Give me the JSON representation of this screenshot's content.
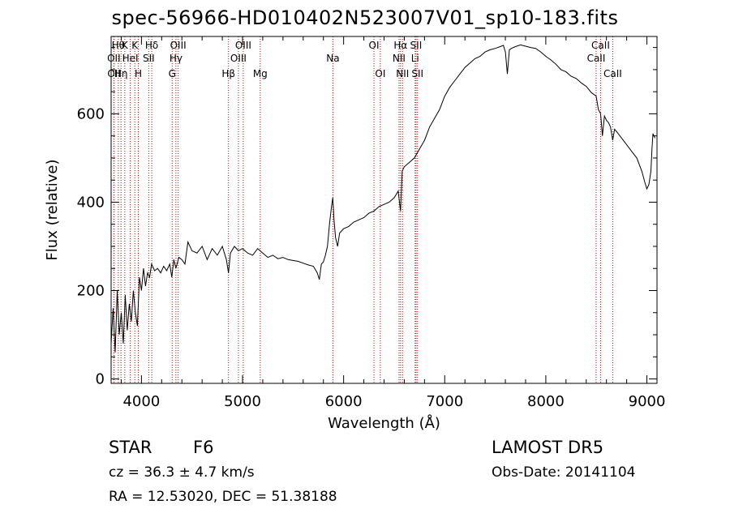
{
  "title": "spec-56966-HD010402N523007V01_sp10-183.fits",
  "info": {
    "star_label": "STAR",
    "star_type": "F6",
    "survey": "LAMOST  DR5",
    "redshift": "cz = 36.3 ± 4.7 km/s",
    "obs_date": "Obs-Date: 20141104",
    "coords": "RA =  12.53020, DEC =  51.38188"
  },
  "chart_data": {
    "type": "line",
    "title": "spec-56966-HD010402N523007V01_sp10-183.fits",
    "xlabel": "Wavelength (Å)",
    "ylabel": "Flux (relative)",
    "xlim": [
      3700,
      9100
    ],
    "ylim": [
      -10,
      775
    ],
    "xticks": [
      4000,
      5000,
      6000,
      7000,
      8000,
      9000
    ],
    "yticks": [
      0,
      200,
      400,
      600
    ],
    "grid": false,
    "line_color": "#000000",
    "marker_color": "#cc0000",
    "series": [
      {
        "x": [
          3700,
          3720,
          3740,
          3760,
          3780,
          3800,
          3820,
          3840,
          3860,
          3880,
          3900,
          3920,
          3940,
          3960,
          3980,
          4000,
          4020,
          4040,
          4060,
          4080,
          4100,
          4130,
          4160,
          4190,
          4220,
          4250,
          4280,
          4300,
          4320,
          4340,
          4370,
          4400,
          4430,
          4460,
          4500,
          4550,
          4600,
          4650,
          4700,
          4750,
          4800,
          4840,
          4861,
          4880,
          4920,
          4960,
          5000,
          5050,
          5100,
          5150,
          5200,
          5250,
          5300,
          5350,
          5400,
          5450,
          5500,
          5550,
          5600,
          5650,
          5700,
          5740,
          5760,
          5780,
          5800,
          5820,
          5840,
          5860,
          5880,
          5893,
          5905,
          5920,
          5940,
          5960,
          5980,
          6000,
          6050,
          6100,
          6150,
          6200,
          6250,
          6300,
          6350,
          6400,
          6450,
          6500,
          6540,
          6563,
          6580,
          6600,
          6650,
          6700,
          6750,
          6800,
          6850,
          6900,
          6950,
          7000,
          7050,
          7100,
          7150,
          7200,
          7250,
          7300,
          7350,
          7400,
          7450,
          7500,
          7550,
          7580,
          7600,
          7620,
          7640,
          7660,
          7700,
          7750,
          7800,
          7850,
          7900,
          7950,
          8000,
          8050,
          8100,
          8150,
          8200,
          8250,
          8300,
          8350,
          8400,
          8450,
          8498,
          8520,
          8542,
          8560,
          8580,
          8600,
          8620,
          8640,
          8662,
          8680,
          8700,
          8750,
          8800,
          8850,
          8900,
          8950,
          8980,
          9000,
          9020,
          9040,
          9050,
          9060,
          9070,
          9080
        ],
        "y": [
          80,
          160,
          60,
          200,
          100,
          150,
          80,
          190,
          110,
          170,
          130,
          200,
          150,
          120,
          230,
          200,
          250,
          210,
          240,
          230,
          260,
          245,
          250,
          240,
          255,
          245,
          260,
          230,
          270,
          250,
          275,
          270,
          260,
          310,
          290,
          285,
          300,
          270,
          295,
          280,
          300,
          270,
          240,
          285,
          300,
          290,
          295,
          285,
          280,
          295,
          285,
          275,
          280,
          272,
          275,
          270,
          268,
          266,
          262,
          258,
          255,
          240,
          225,
          260,
          265,
          280,
          300,
          350,
          390,
          410,
          360,
          320,
          300,
          330,
          335,
          340,
          345,
          355,
          360,
          365,
          375,
          380,
          390,
          395,
          400,
          410,
          425,
          380,
          470,
          480,
          490,
          500,
          520,
          540,
          570,
          590,
          610,
          640,
          660,
          675,
          690,
          705,
          715,
          725,
          730,
          740,
          745,
          748,
          752,
          755,
          740,
          690,
          745,
          748,
          752,
          756,
          753,
          750,
          748,
          740,
          730,
          722,
          712,
          700,
          695,
          685,
          680,
          670,
          662,
          648,
          640,
          610,
          600,
          550,
          595,
          585,
          580,
          570,
          540,
          565,
          560,
          545,
          530,
          515,
          500,
          470,
          445,
          430,
          440,
          470,
          520,
          555,
          550,
          545
        ]
      }
    ],
    "lines": [
      {
        "x": 3727,
        "label": "OII",
        "row": 1
      },
      {
        "x": 3729,
        "label": "OII",
        "row": 2
      },
      {
        "x": 3771,
        "label": "Hθ",
        "row": 0
      },
      {
        "x": 3798,
        "label": "Hη",
        "row": 2
      },
      {
        "x": 3835,
        "label": "K",
        "row": 0
      },
      {
        "x": 3889,
        "label": "HeI",
        "row": 1
      },
      {
        "x": 3934,
        "label": "K",
        "row": 0
      },
      {
        "x": 3969,
        "label": "H",
        "row": 2
      },
      {
        "x": 4072,
        "label": "SII",
        "row": 1
      },
      {
        "x": 4102,
        "label": "Hδ",
        "row": 0
      },
      {
        "x": 4304,
        "label": "G",
        "row": 2
      },
      {
        "x": 4341,
        "label": "Hγ",
        "row": 1
      },
      {
        "x": 4363,
        "label": "OIII",
        "row": 0
      },
      {
        "x": 4861,
        "label": "Hβ",
        "row": 2
      },
      {
        "x": 4959,
        "label": "OIII",
        "row": 1
      },
      {
        "x": 5007,
        "label": "OIII",
        "row": 0
      },
      {
        "x": 5175,
        "label": "Mg",
        "row": 2
      },
      {
        "x": 5894,
        "label": "Na",
        "row": 1
      },
      {
        "x": 6300,
        "label": "OI",
        "row": 0
      },
      {
        "x": 6363,
        "label": "OI",
        "row": 2
      },
      {
        "x": 6548,
        "label": "NII",
        "row": 1
      },
      {
        "x": 6563,
        "label": "Hα",
        "row": 0
      },
      {
        "x": 6583,
        "label": "NII",
        "row": 2
      },
      {
        "x": 6707,
        "label": "Li",
        "row": 1
      },
      {
        "x": 6716,
        "label": "SII",
        "row": 0
      },
      {
        "x": 6731,
        "label": "SII",
        "row": 2
      },
      {
        "x": 8498,
        "label": "CaII",
        "row": 1
      },
      {
        "x": 8542,
        "label": "CaII",
        "row": 0
      },
      {
        "x": 8662,
        "label": "CaII",
        "row": 2
      }
    ]
  }
}
